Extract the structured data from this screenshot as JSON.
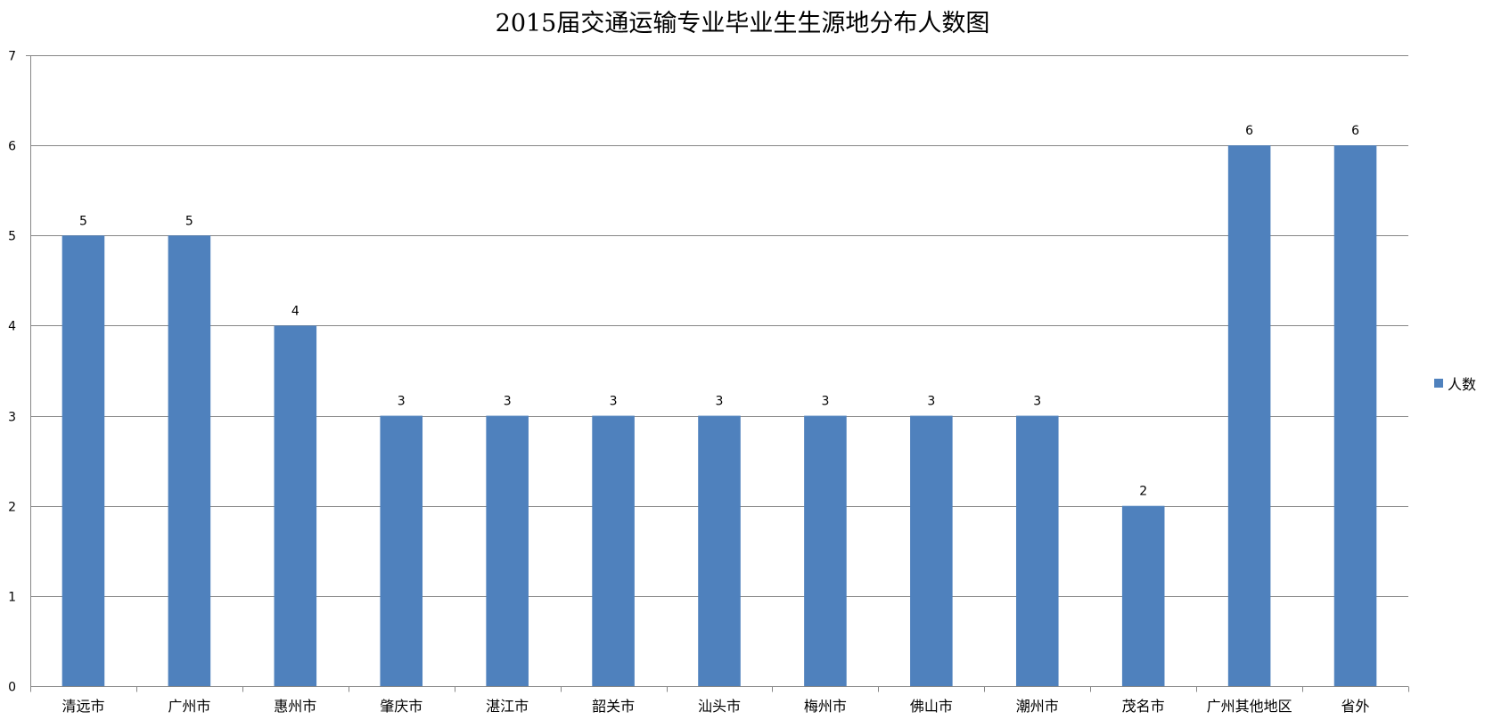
{
  "chart_data": {
    "type": "bar",
    "title": "2015届交通运输专业毕业生生源地分布人数图",
    "xlabel": "",
    "ylabel": "",
    "categories": [
      "清远市",
      "广州市",
      "惠州市",
      "肇庆市",
      "湛江市",
      "韶关市",
      "汕头市",
      "梅州市",
      "佛山市",
      "潮州市",
      "茂名市",
      "广州其他地区",
      "省外"
    ],
    "series": [
      {
        "name": "人数",
        "values": [
          5,
          5,
          4,
          3,
          3,
          3,
          3,
          3,
          3,
          3,
          2,
          6,
          6
        ],
        "color": "#4f81bd"
      }
    ],
    "ylim": [
      0,
      7
    ],
    "yticks": [
      0,
      1,
      2,
      3,
      4,
      5,
      6,
      7
    ],
    "grid": true,
    "legend_position": "right",
    "data_labels": true
  }
}
